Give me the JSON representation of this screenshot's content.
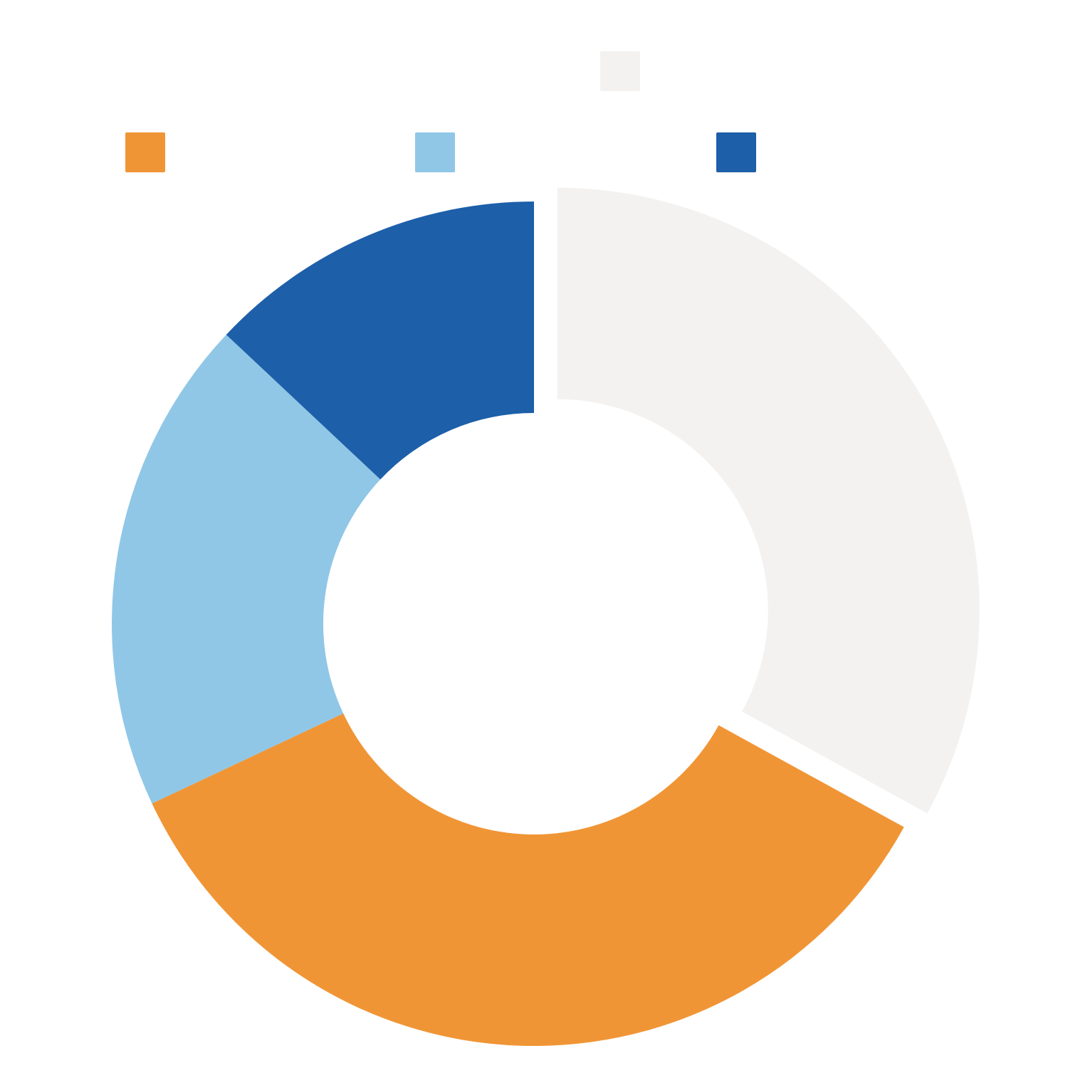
{
  "chart_data": {
    "type": "donut",
    "values": [
      33,
      35,
      19,
      13
    ],
    "colors": [
      "#f3f2f0",
      "#f09535",
      "#90c7e7",
      "#1d5fa9"
    ],
    "exploded": [
      0
    ]
  }
}
